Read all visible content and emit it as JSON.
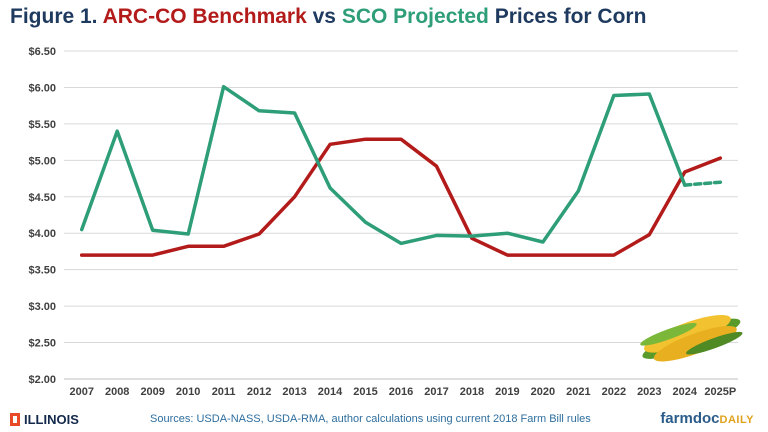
{
  "title": {
    "prefix": "Figure 1. ",
    "arc": "ARC-CO Benchmark",
    "mid": " vs ",
    "sco": "SCO Projected",
    "suffix": " Prices for Corn"
  },
  "footer": {
    "left_brand": "ILLINOIS",
    "sources": "Sources: USDA-NASS, USDA-RMA, author calculations using current 2018 Farm Bill rules",
    "right_brand_main": "farmdoc",
    "right_brand_daily": "DAILY"
  },
  "colors": {
    "arc": "#b31b1b",
    "sco": "#2e9e78",
    "grid": "#d9d9d9",
    "axis_text": "#404040"
  },
  "icon": "corn-image",
  "chart_data": {
    "type": "line",
    "title": "Figure 1. ARC-CO Benchmark vs SCO Projected Prices for Corn",
    "xlabel": "",
    "ylabel": "",
    "categories": [
      "2007",
      "2008",
      "2009",
      "2010",
      "2011",
      "2012",
      "2013",
      "2014",
      "2015",
      "2016",
      "2017",
      "2018",
      "2019",
      "2020",
      "2021",
      "2022",
      "2023",
      "2024",
      "2025P"
    ],
    "ylim": [
      2.0,
      6.5
    ],
    "yticks": [
      "$2.00",
      "$2.50",
      "$3.00",
      "$3.50",
      "$4.00",
      "$4.50",
      "$5.00",
      "$5.50",
      "$6.00",
      "$6.50"
    ],
    "ytick_values": [
      2.0,
      2.5,
      3.0,
      3.5,
      4.0,
      4.5,
      5.0,
      5.5,
      6.0,
      6.5
    ],
    "grid": true,
    "series": [
      {
        "values": [
          3.7,
          3.7,
          3.7,
          3.82,
          3.82,
          3.99,
          4.5,
          5.22,
          5.29,
          5.29,
          4.92,
          3.93,
          3.7,
          3.7,
          3.7,
          3.7,
          3.98,
          4.84,
          5.03
        ],
        "style": "solid"
      },
      {
        "values": [
          4.05,
          5.4,
          4.04,
          3.99,
          6.01,
          5.68,
          5.65,
          4.62,
          4.15,
          3.86,
          3.97,
          3.96,
          4.0,
          3.88,
          4.58,
          5.89,
          5.91,
          4.66,
          null
        ],
        "style": "solid"
      },
      {
        "values": [
          null,
          null,
          null,
          null,
          null,
          null,
          null,
          null,
          null,
          null,
          null,
          null,
          null,
          null,
          null,
          null,
          null,
          4.66,
          4.7
        ],
        "style": "dashed"
      }
    ]
  }
}
